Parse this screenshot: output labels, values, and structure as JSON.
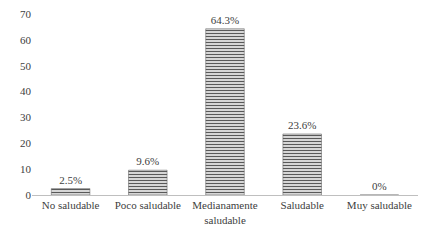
{
  "chart_data": {
    "type": "bar",
    "categories": [
      "No saludable",
      "Poco saludable",
      "Medianamente saludable",
      "Saludable",
      "Muy saludable"
    ],
    "values": [
      2.5,
      9.6,
      64.3,
      23.6,
      0
    ],
    "value_labels": [
      "2.5%",
      "9.6%",
      "64.3%",
      "23.6%",
      "0%"
    ],
    "data_labels": true,
    "color": "#595959",
    "ylim": [
      0,
      70
    ],
    "yticks": [
      0,
      10,
      20,
      30,
      40,
      50,
      60,
      70
    ],
    "grid": false
  }
}
